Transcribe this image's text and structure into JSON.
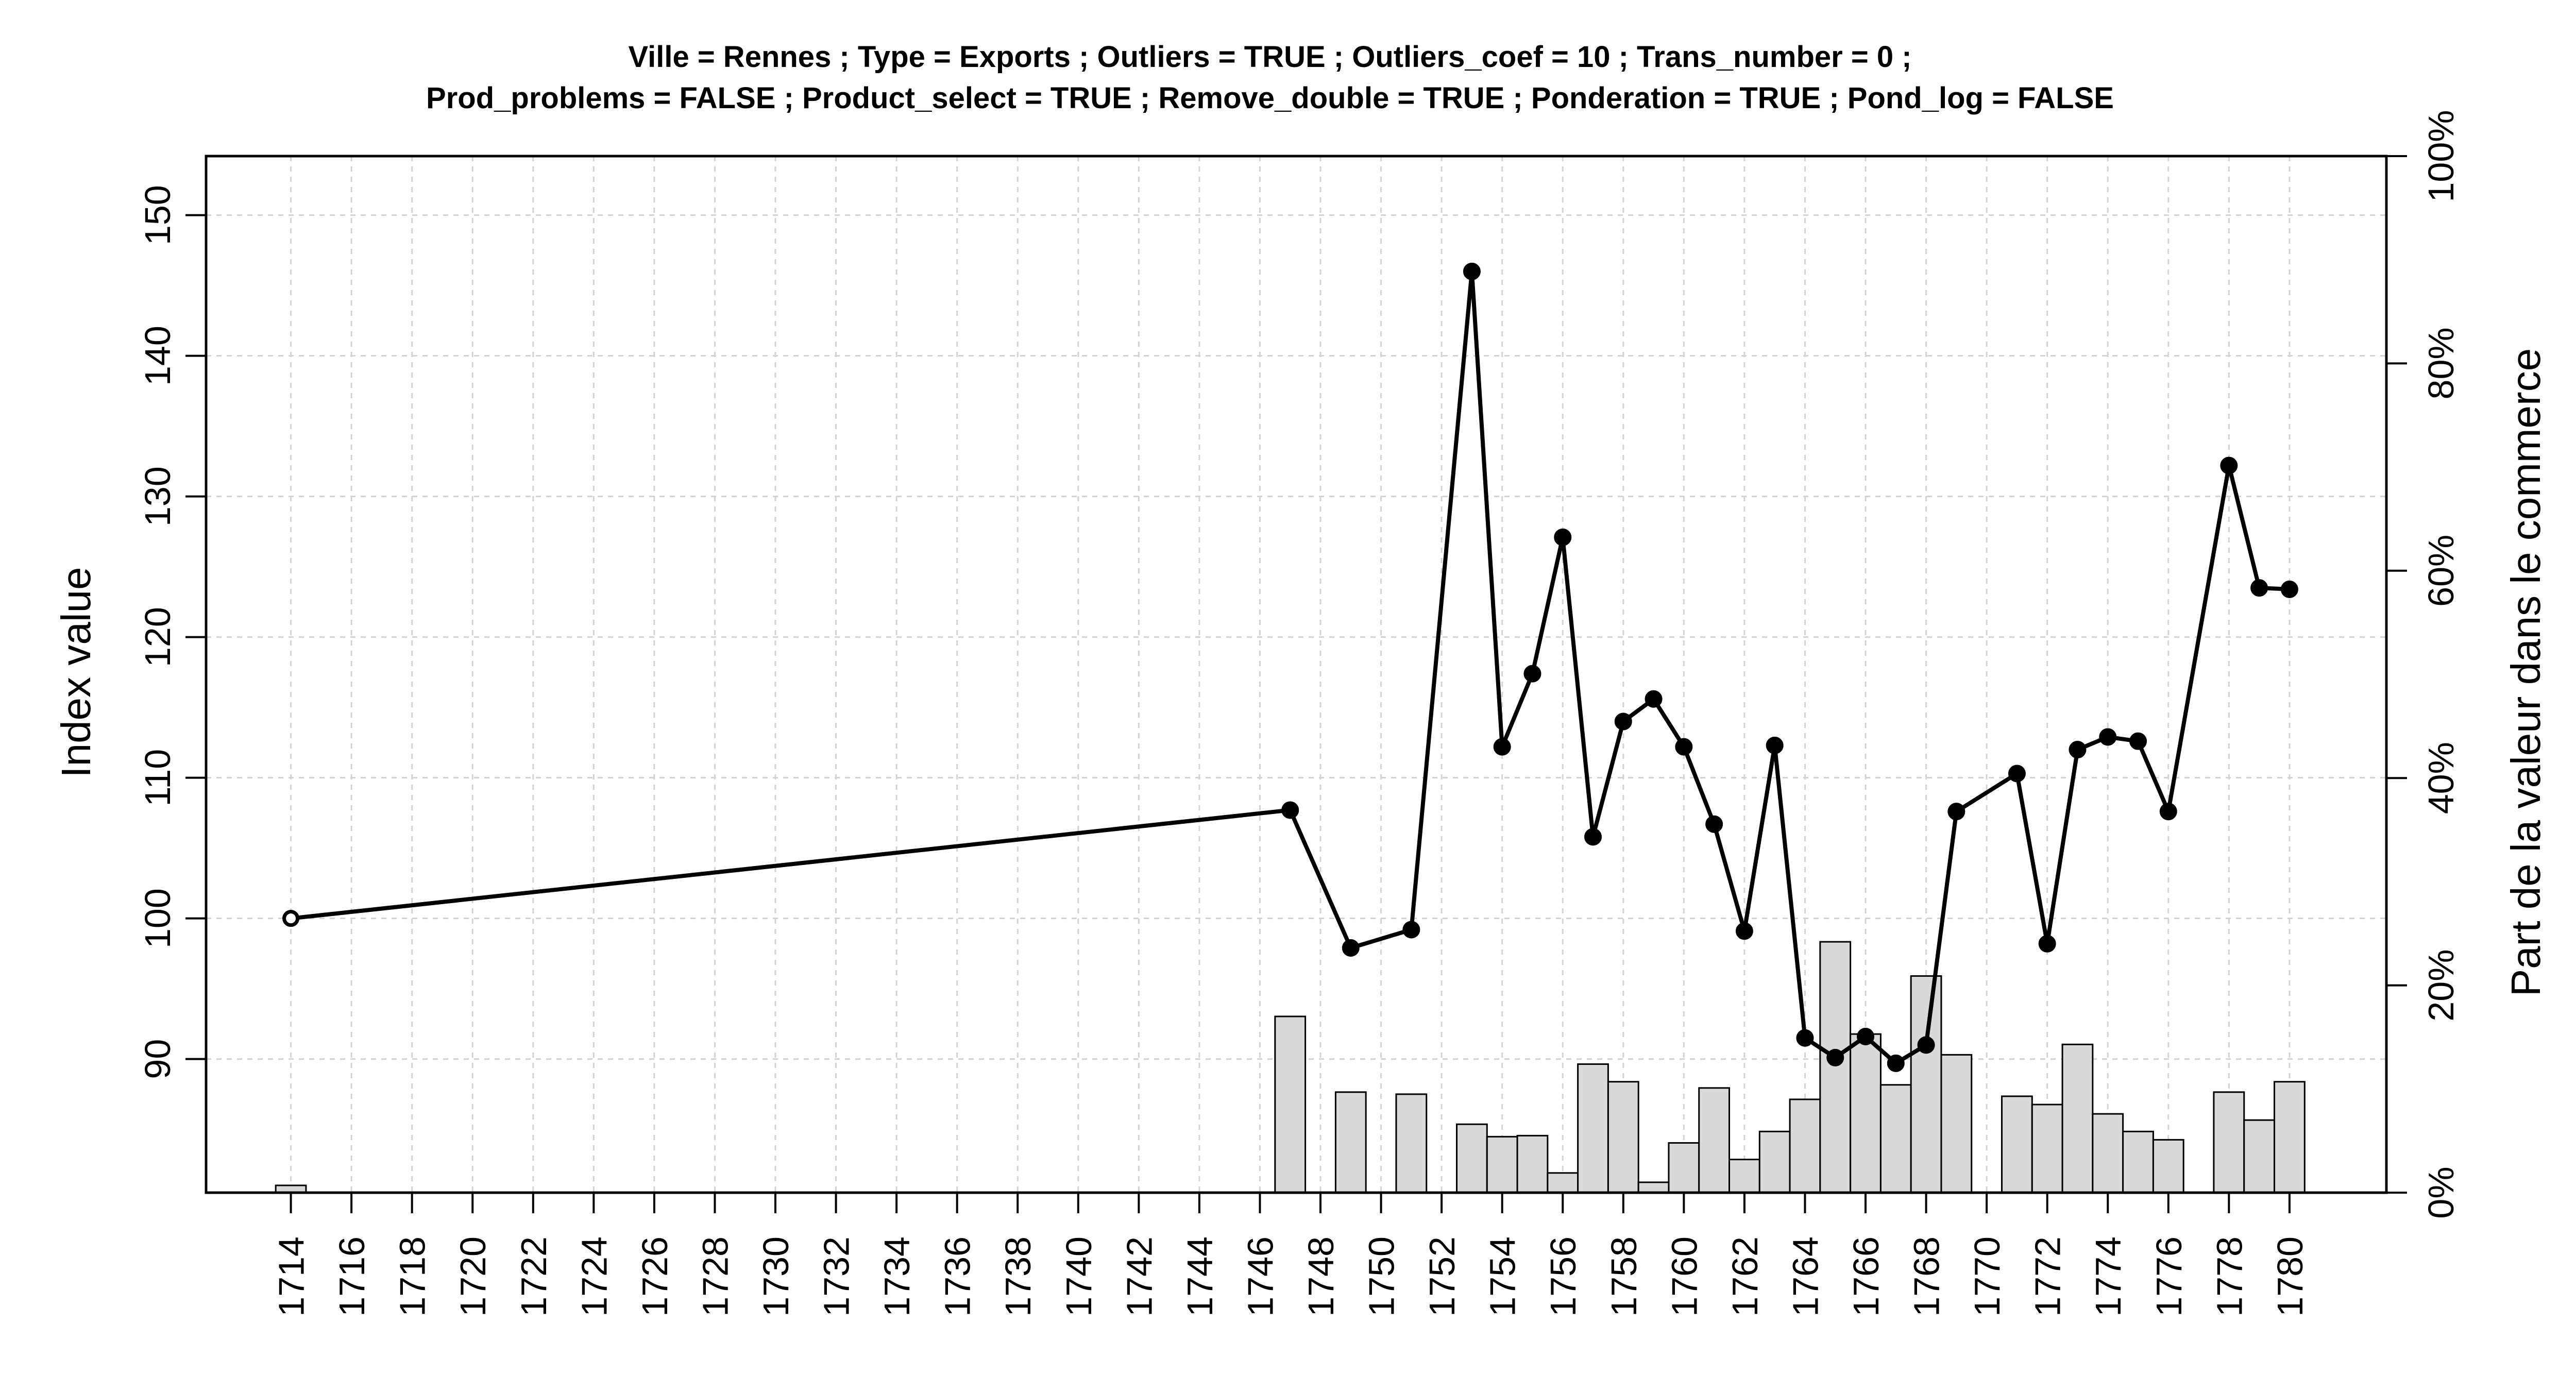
{
  "chart_data": {
    "type": "bar+line",
    "title_lines": [
      "Ville = Rennes ; Type = Exports ; Outliers = TRUE ; Outliers_coef = 10 ; Trans_number = 0 ;",
      "Prod_problems = FALSE ; Product_select = TRUE ; Remove_double = TRUE ; Ponderation = TRUE ; Pond_log = FALSE"
    ],
    "ylabel": "Index value",
    "y2label": "Part de la valeur dans le commerce",
    "xlim": [
      1711.2,
      1783.2
    ],
    "ylim": [
      80.5,
      154.2
    ],
    "y2lim": [
      0,
      100
    ],
    "x_ticks": [
      1714,
      1716,
      1718,
      1720,
      1722,
      1724,
      1726,
      1728,
      1730,
      1732,
      1734,
      1736,
      1738,
      1740,
      1742,
      1744,
      1746,
      1748,
      1750,
      1752,
      1754,
      1756,
      1758,
      1760,
      1762,
      1764,
      1766,
      1768,
      1770,
      1772,
      1774,
      1776,
      1778,
      1780
    ],
    "x_tick_labels": [
      "1714",
      "1716",
      "1718",
      "1720",
      "1722",
      "1724",
      "1726",
      "1728",
      "1730",
      "1732",
      "1734",
      "1736",
      "1738",
      "1740",
      "1742",
      "1744",
      "1746",
      "1748",
      "1750",
      "1752",
      "1754",
      "1756",
      "1758",
      "1760",
      "1762",
      "1764",
      "1766",
      "1768",
      "1770",
      "1772",
      "1774",
      "1776",
      "1778",
      "1780"
    ],
    "y_ticks": [
      90,
      100,
      110,
      120,
      130,
      140,
      150
    ],
    "y_tick_labels": [
      "90",
      "100",
      "110",
      "120",
      "130",
      "140",
      "150"
    ],
    "y2_ticks": [
      0,
      20,
      40,
      60,
      80,
      100
    ],
    "y2_tick_labels": [
      "0%",
      "20%",
      "40%",
      "60%",
      "80%",
      "100%"
    ],
    "grid": true,
    "line_series": {
      "x": [
        1714,
        1747,
        1749,
        1751,
        1753,
        1754,
        1755,
        1756,
        1757,
        1758,
        1759,
        1760,
        1761,
        1762,
        1763,
        1764,
        1765,
        1766,
        1767,
        1768,
        1769,
        1771,
        1772,
        1773,
        1774,
        1775,
        1776,
        1778,
        1779,
        1780
      ],
      "y": [
        100.0,
        107.7,
        97.9,
        99.2,
        146.0,
        112.2,
        117.4,
        127.1,
        105.8,
        114.0,
        115.6,
        112.2,
        106.7,
        99.1,
        112.3,
        91.5,
        90.1,
        91.6,
        89.7,
        91.0,
        107.6,
        110.3,
        98.2,
        112.0,
        112.9,
        112.6,
        107.6,
        132.2,
        123.5,
        123.4
      ],
      "color": "#000000"
    },
    "bar_series": {
      "x": [
        1714,
        1747,
        1749,
        1751,
        1753,
        1754,
        1755,
        1756,
        1757,
        1758,
        1759,
        1760,
        1761,
        1762,
        1763,
        1764,
        1765,
        1766,
        1767,
        1768,
        1769,
        1771,
        1772,
        1773,
        1774,
        1775,
        1776,
        1778,
        1779,
        1780
      ],
      "values": [
        0.7,
        17.0,
        9.7,
        9.5,
        6.6,
        5.4,
        5.5,
        1.9,
        12.4,
        10.7,
        1.0,
        4.8,
        10.1,
        3.2,
        5.9,
        9.0,
        24.2,
        15.3,
        10.4,
        20.9,
        13.3,
        9.3,
        8.5,
        14.3,
        7.6,
        5.9,
        5.1,
        9.7,
        7.0,
        10.7
      ],
      "fill": "#d9d9d9",
      "stroke": "#000000"
    }
  }
}
